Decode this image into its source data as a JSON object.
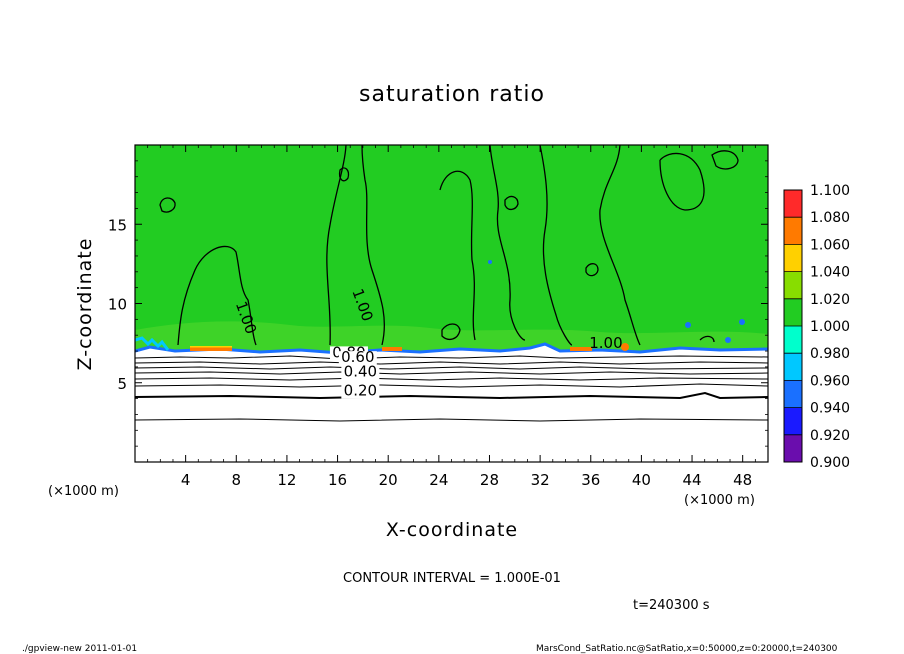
{
  "chart_data": {
    "type": "heatmap",
    "title": "saturation ratio",
    "xlabel": "X-coordinate",
    "ylabel": "Z-coordinate",
    "x_unit": "(×1000 m)",
    "z_unit": "(×1000 m)",
    "xlim": [
      0,
      50
    ],
    "ylim": [
      0,
      20
    ],
    "x_ticks": [
      4,
      8,
      12,
      16,
      20,
      24,
      28,
      32,
      36,
      40,
      44,
      48
    ],
    "y_ticks": [
      5,
      10,
      15
    ],
    "colorbar": {
      "levels": [
        0.9,
        0.92,
        0.94,
        0.96,
        0.98,
        1.0,
        1.02,
        1.04,
        1.06,
        1.08,
        1.1
      ],
      "labels": [
        "0.900",
        "0.920",
        "0.940",
        "0.960",
        "0.980",
        "1.000",
        "1.020",
        "1.040",
        "1.060",
        "1.080",
        "1.100"
      ],
      "colors": [
        "#6a0dad",
        "#1a1aff",
        "#1a70ff",
        "#00c8ff",
        "#00ffcc",
        "#22cc22",
        "#88dd00",
        "#ffd000",
        "#ff7a00",
        "#ff2a2a",
        "#ff9a9a"
      ]
    },
    "contour_labels": [
      {
        "text": "1.00",
        "x": 8.4,
        "z": 9.0
      },
      {
        "text": "1.00",
        "x": 17.6,
        "z": 9.8
      },
      {
        "text": "0.80",
        "x": 16.9,
        "z": 6.6
      },
      {
        "text": "0.60",
        "x": 17.6,
        "z": 6.3
      },
      {
        "text": "0.40",
        "x": 17.8,
        "z": 5.4
      },
      {
        "text": "0.20",
        "x": 17.8,
        "z": 4.2
      },
      {
        "text": "1.00",
        "x": 37.2,
        "z": 7.2
      }
    ],
    "contour_interval_text": "CONTOUR INTERVAL = 1.000E-01",
    "time_text": "t=240300 s",
    "footer_left": "./gpview-new   2011-01-01",
    "footer_right": "MarsCond_SatRatio.nc@SatRatio,x=0:50000,z=0:20000,t=240300"
  }
}
